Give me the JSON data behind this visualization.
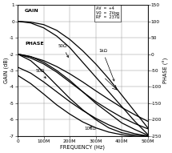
{
  "xlabel": "FREQUENCY (Hz)",
  "ylabel_left": "GAIN (dB)",
  "ylabel_right": "PHASE (°)",
  "xlim": [
    0,
    500000000.0
  ],
  "ylim_gain": [
    -7,
    1
  ],
  "ylim_phase": [
    -250,
    150
  ],
  "freq": [
    0,
    50000000.0,
    100000000.0,
    150000000.0,
    200000000.0,
    250000000.0,
    300000000.0,
    350000000.0,
    400000000.0,
    450000000.0,
    500000000.0
  ],
  "gain_1k": [
    0.0,
    -0.05,
    -0.2,
    -0.55,
    -1.1,
    -1.8,
    -2.6,
    -3.5,
    -4.5,
    -5.5,
    -6.5
  ],
  "gain_500a": [
    0.0,
    -0.1,
    -0.4,
    -0.9,
    -1.6,
    -2.5,
    -3.4,
    -4.3,
    -5.2,
    -6.1,
    -6.9
  ],
  "gain_500b": [
    -2.0,
    -2.15,
    -2.5,
    -3.0,
    -3.6,
    -4.3,
    -5.0,
    -5.6,
    -6.2,
    -6.6,
    -6.95
  ],
  "gain_100": [
    -2.0,
    -2.4,
    -3.1,
    -3.9,
    -4.7,
    -5.4,
    -6.0,
    -6.5,
    -6.8,
    -6.95,
    -7.0
  ],
  "phase_1k": [
    0,
    -8,
    -20,
    -38,
    -60,
    -85,
    -112,
    -138,
    -163,
    -185,
    -205
  ],
  "phase_500a": [
    0,
    -12,
    -30,
    -55,
    -85,
    -115,
    -145,
    -170,
    -193,
    -212,
    -228
  ],
  "phase_500b": [
    -40,
    -58,
    -85,
    -115,
    -145,
    -172,
    -196,
    -216,
    -232,
    -243,
    -250
  ],
  "phase_100": [
    -65,
    -90,
    -122,
    -155,
    -183,
    -207,
    -225,
    -238,
    -246,
    -251,
    -253
  ],
  "label_gain": "GAIN",
  "label_phase": "PHASE",
  "label_1k": "1kΩ",
  "label_500a": "50Ω",
  "label_500b": "50Ω",
  "label_100": "100Ω",
  "ann_line1": "AV = +4",
  "ann_line2": "VO = 2Vpp",
  "ann_line3": "RF = 237Ω",
  "line_color": "#000000",
  "bg_color": "#ffffff",
  "grid_color": "#999999",
  "yticks_gain": [
    1,
    0,
    -1,
    -2,
    -3,
    -4,
    -5,
    -6,
    -7
  ],
  "yticks_phase": [
    150,
    100,
    50,
    0,
    -50,
    -100,
    -150,
    -200,
    -250
  ],
  "xtick_labels": [
    "0",
    "100M",
    "200M",
    "300M",
    "400M",
    "500M"
  ]
}
